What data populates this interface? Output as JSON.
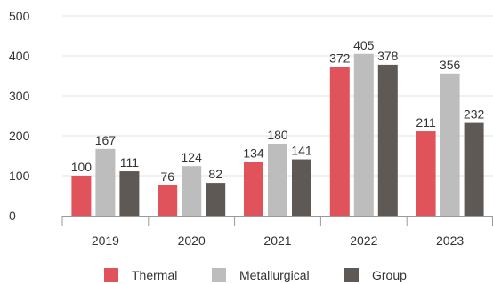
{
  "chart_data": {
    "type": "bar",
    "categories": [
      "2019",
      "2020",
      "2021",
      "2022",
      "2023"
    ],
    "series": [
      {
        "name": "Thermal",
        "color": "#e0535a",
        "values": [
          100,
          76,
          134,
          372,
          211
        ]
      },
      {
        "name": "Metallurgical",
        "color": "#bdbdbd",
        "values": [
          167,
          124,
          180,
          405,
          356
        ]
      },
      {
        "name": "Group",
        "color": "#5f5955",
        "values": [
          111,
          82,
          141,
          378,
          232
        ]
      }
    ],
    "yticks": [
      "0",
      "100",
      "200",
      "300",
      "400",
      "500"
    ],
    "ylim": [
      0,
      500
    ],
    "grid": true,
    "legend_position": "bottom",
    "title": "",
    "xlabel": "",
    "ylabel": ""
  }
}
